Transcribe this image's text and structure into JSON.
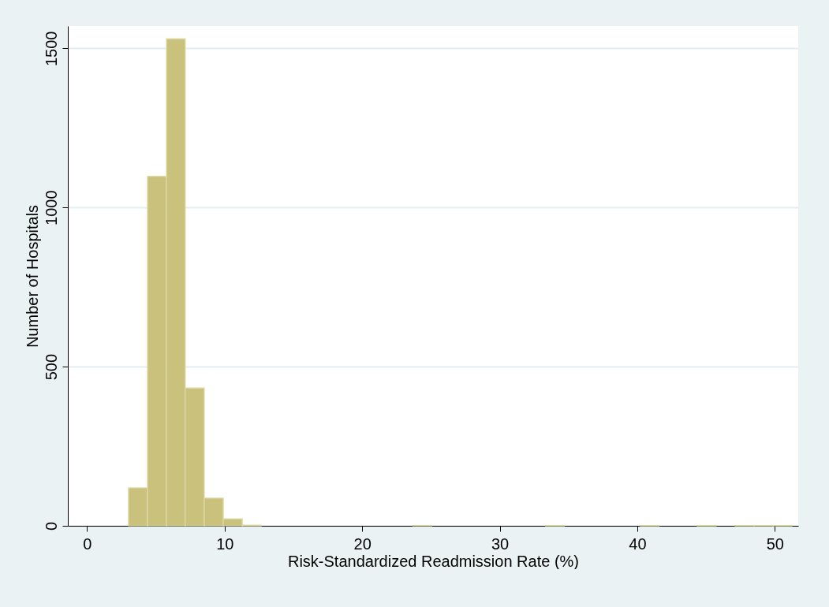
{
  "chart_data": {
    "type": "histogram",
    "xlabel": "Risk-Standardized Readmission Rate (%)",
    "ylabel": "Number of Hospitals",
    "bins": [
      3.01,
      4.39,
      5.77,
      7.14,
      8.52,
      9.9,
      11.28,
      12.66,
      14.03,
      15.41,
      16.79,
      18.17,
      19.55,
      20.92,
      22.3,
      23.68,
      25.06,
      26.44,
      27.81,
      29.19,
      30.57,
      31.95,
      33.33,
      34.7,
      36.08,
      37.46,
      38.84,
      40.22,
      41.59,
      42.97,
      44.35,
      45.73,
      47.11,
      48.48,
      49.86,
      51.24
    ],
    "values": [
      119,
      1098,
      1530,
      433,
      87,
      22,
      2,
      0,
      0,
      0,
      0,
      0,
      0,
      0,
      0,
      1,
      0,
      0,
      0,
      0,
      0,
      0,
      1,
      0,
      0,
      0,
      0,
      1,
      0,
      0,
      1,
      0,
      1,
      1,
      1
    ],
    "color": "#c9c17c",
    "xlim": [
      -1.4,
      51.7
    ],
    "xticks": [
      0,
      10,
      20,
      30,
      40,
      50
    ],
    "ylim": [
      0,
      1570
    ],
    "yticks": [
      0,
      500,
      1000,
      1500
    ],
    "grid": "y"
  }
}
